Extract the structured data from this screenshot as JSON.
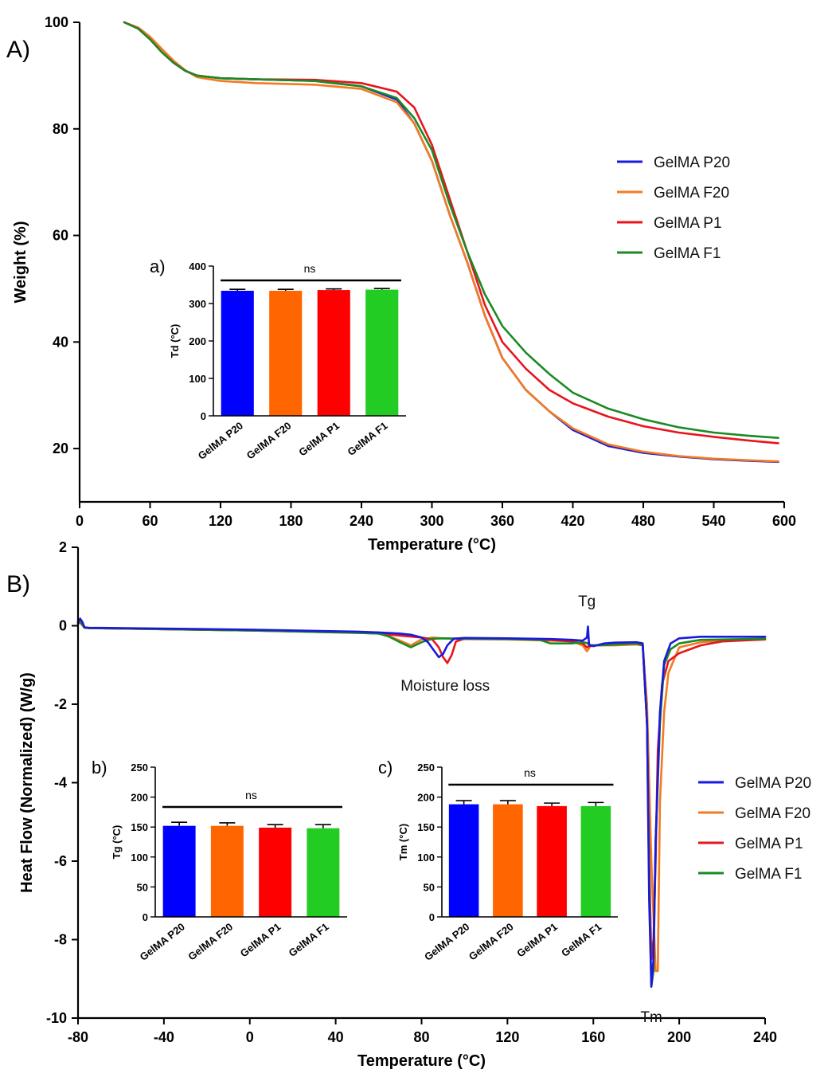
{
  "colors": {
    "GelMA P20": "#1a1adb",
    "GelMA F20": "#f47a20",
    "GelMA P1": "#e8141d",
    "GelMA F1": "#1b8a23"
  },
  "bar_colors": [
    "#0000ff",
    "#ff6600",
    "#ff0000",
    "#22cc22"
  ],
  "chart_data": [
    {
      "id": "A",
      "panel_label": "A)",
      "type": "line",
      "xlabel": "Temperature (°C)",
      "ylabel": "Weight (%)",
      "xlim": [
        0,
        600
      ],
      "ylim": [
        10,
        100
      ],
      "xticks": [
        0,
        60,
        120,
        180,
        240,
        300,
        360,
        420,
        480,
        540,
        600
      ],
      "yticks": [
        20,
        40,
        60,
        80,
        100
      ],
      "legend": [
        "GelMA P20",
        "GelMA F20",
        "GelMA P1",
        "GelMA F1"
      ],
      "series": [
        {
          "name": "GelMA P20",
          "x": [
            38,
            50,
            60,
            70,
            80,
            90,
            100,
            120,
            150,
            200,
            240,
            270,
            285,
            300,
            315,
            330,
            345,
            360,
            380,
            400,
            420,
            450,
            480,
            510,
            540,
            570,
            595
          ],
          "y": [
            100,
            98.8,
            96.8,
            94.4,
            92.4,
            90.9,
            90.0,
            89.5,
            89.3,
            89.0,
            88.0,
            85.5,
            81,
            74,
            64,
            55,
            45,
            37,
            31,
            27,
            23.5,
            20.5,
            19.2,
            18.5,
            18.0,
            17.7,
            17.5
          ]
        },
        {
          "name": "GelMA F20",
          "x": [
            38,
            50,
            60,
            70,
            80,
            90,
            100,
            120,
            150,
            200,
            240,
            270,
            285,
            300,
            315,
            330,
            345,
            360,
            380,
            400,
            420,
            450,
            480,
            510,
            540,
            570,
            595
          ],
          "y": [
            100,
            99,
            97.3,
            95,
            92.8,
            91,
            89.7,
            89.0,
            88.6,
            88.3,
            87.5,
            85.0,
            81,
            74,
            64,
            55,
            45,
            37,
            31,
            27,
            23.8,
            20.8,
            19.4,
            18.6,
            18.1,
            17.8,
            17.6
          ]
        },
        {
          "name": "GelMA P1",
          "x": [
            38,
            50,
            60,
            70,
            80,
            90,
            100,
            120,
            150,
            200,
            240,
            270,
            285,
            300,
            315,
            330,
            345,
            360,
            380,
            400,
            420,
            450,
            480,
            510,
            540,
            570,
            595
          ],
          "y": [
            100,
            98.8,
            96.8,
            94.4,
            92.4,
            90.9,
            90.0,
            89.5,
            89.3,
            89.2,
            88.6,
            87.0,
            84,
            77,
            67,
            57,
            47,
            40,
            35,
            31,
            28.5,
            26,
            24.2,
            23,
            22.2,
            21.5,
            21.0
          ]
        },
        {
          "name": "GelMA F1",
          "x": [
            38,
            50,
            60,
            70,
            80,
            90,
            100,
            120,
            150,
            200,
            240,
            270,
            285,
            300,
            315,
            330,
            345,
            360,
            380,
            400,
            420,
            450,
            480,
            510,
            540,
            570,
            595
          ],
          "y": [
            100,
            98.8,
            96.8,
            94.4,
            92.4,
            90.9,
            90.0,
            89.5,
            89.3,
            89.0,
            88.0,
            85.8,
            82,
            76,
            66,
            57,
            49,
            43,
            38,
            34,
            30.5,
            27.5,
            25.5,
            24.0,
            23.0,
            22.4,
            22.0
          ]
        }
      ]
    },
    {
      "id": "a",
      "panel_label": "a)",
      "type": "bar",
      "categories": [
        "GelMA P20",
        "GelMA F20",
        "GelMA P1",
        "GelMA F1"
      ],
      "values": [
        334,
        334,
        336,
        337
      ],
      "errors": [
        4,
        4,
        3,
        3
      ],
      "ylabel": "Td (°C)",
      "ylim": [
        0,
        400
      ],
      "yticks": [
        0,
        100,
        200,
        300,
        400
      ],
      "significance": "ns"
    },
    {
      "id": "B",
      "panel_label": "B)",
      "type": "line",
      "xlabel": "Temperature (°C)",
      "ylabel": "Heat Flow (Normalized) (W/g)",
      "xlim": [
        -80,
        240
      ],
      "ylim": [
        -10,
        2
      ],
      "xticks": [
        -80,
        -40,
        0,
        40,
        80,
        120,
        160,
        200,
        240
      ],
      "yticks": [
        -10,
        -8,
        -6,
        -4,
        -2,
        0,
        2
      ],
      "legend": [
        "GelMA P20",
        "GelMA F20",
        "GelMA P1",
        "GelMA F1"
      ],
      "annotations": [
        {
          "text": "Tg",
          "x": 157,
          "y": 0.5
        },
        {
          "text": "Moisture loss",
          "x": 91,
          "y": -1.65
        },
        {
          "text": "Tm",
          "x": 187,
          "y": -10.1
        }
      ],
      "series": [
        {
          "name": "GelMA F20",
          "x": [
            -80,
            -79,
            -77,
            -75,
            0,
            50,
            60,
            65,
            70,
            75,
            80,
            85,
            90,
            100,
            120,
            140,
            150,
            155,
            157,
            159,
            162,
            170,
            180,
            183,
            185,
            187,
            189,
            190,
            191,
            193,
            195,
            200,
            210,
            220,
            240
          ],
          "y": [
            0.05,
            0.08,
            -0.05,
            -0.06,
            -0.12,
            -0.18,
            -0.2,
            -0.27,
            -0.38,
            -0.5,
            -0.35,
            -0.3,
            -0.32,
            -0.34,
            -0.35,
            -0.38,
            -0.4,
            -0.5,
            -0.65,
            -0.5,
            -0.5,
            -0.5,
            -0.48,
            -0.5,
            -2.0,
            -6.0,
            -8.8,
            -8.8,
            -4.5,
            -2.2,
            -1.2,
            -0.55,
            -0.42,
            -0.38,
            -0.35
          ]
        },
        {
          "name": "GelMA P1",
          "x": [
            -80,
            -79,
            -77,
            -75,
            0,
            50,
            60,
            70,
            80,
            85,
            88,
            90,
            92,
            94,
            96,
            100,
            120,
            140,
            150,
            155,
            157,
            159,
            162,
            170,
            180,
            183,
            185,
            186,
            187,
            188,
            189,
            190,
            192,
            195,
            200,
            210,
            220,
            240
          ],
          "y": [
            0.05,
            0.1,
            -0.05,
            -0.06,
            -0.12,
            -0.17,
            -0.2,
            -0.25,
            -0.3,
            -0.35,
            -0.55,
            -0.8,
            -0.95,
            -0.75,
            -0.4,
            -0.33,
            -0.34,
            -0.36,
            -0.4,
            -0.45,
            -0.55,
            -0.5,
            -0.5,
            -0.48,
            -0.45,
            -0.5,
            -2.5,
            -6,
            -8.5,
            -8.0,
            -6.0,
            -3.2,
            -1.5,
            -0.9,
            -0.7,
            -0.5,
            -0.4,
            -0.35
          ]
        },
        {
          "name": "GelMA F1",
          "x": [
            -80,
            -79,
            -77,
            -75,
            0,
            50,
            60,
            65,
            70,
            75,
            80,
            85,
            90,
            100,
            120,
            135,
            140,
            150,
            155,
            157,
            159,
            162,
            170,
            180,
            183,
            185,
            186,
            187,
            188,
            189,
            191,
            193,
            196,
            200,
            210,
            240
          ],
          "y": [
            0.08,
            0.12,
            -0.05,
            -0.06,
            -0.12,
            -0.18,
            -0.2,
            -0.28,
            -0.42,
            -0.55,
            -0.42,
            -0.33,
            -0.32,
            -0.33,
            -0.34,
            -0.36,
            -0.45,
            -0.45,
            -0.42,
            -0.44,
            -0.5,
            -0.5,
            -0.48,
            -0.45,
            -0.5,
            -2.5,
            -6.5,
            -9.2,
            -8.8,
            -5.5,
            -2.5,
            -1.0,
            -0.6,
            -0.45,
            -0.36,
            -0.33
          ]
        },
        {
          "name": "GelMA P20",
          "x": [
            -80,
            -79,
            -78,
            -77,
            -75,
            0,
            50,
            60,
            70,
            75,
            80,
            83,
            86,
            88,
            90,
            92,
            95,
            100,
            120,
            140,
            150,
            155,
            157,
            157.5,
            158,
            160,
            165,
            170,
            180,
            183,
            185,
            186,
            187,
            188,
            189,
            191,
            193,
            196,
            200,
            210,
            240
          ],
          "y": [
            0.1,
            0.18,
            0.1,
            -0.04,
            -0.05,
            -0.1,
            -0.15,
            -0.17,
            -0.2,
            -0.23,
            -0.3,
            -0.42,
            -0.65,
            -0.8,
            -0.72,
            -0.5,
            -0.33,
            -0.31,
            -0.32,
            -0.34,
            -0.36,
            -0.38,
            -0.3,
            -0.02,
            -0.5,
            -0.52,
            -0.45,
            -0.43,
            -0.42,
            -0.45,
            -2.5,
            -7,
            -9.2,
            -8.5,
            -5.5,
            -2.2,
            -0.9,
            -0.45,
            -0.32,
            -0.28,
            -0.28
          ]
        }
      ]
    },
    {
      "id": "b",
      "panel_label": "b)",
      "type": "bar",
      "categories": [
        "GelMA P20",
        "GelMA F20",
        "GelMA P1",
        "GelMA F1"
      ],
      "values": [
        152,
        152,
        149,
        148
      ],
      "errors": [
        6,
        5,
        5,
        6
      ],
      "ylabel": "Tg (°C)",
      "ylim": [
        0,
        250
      ],
      "yticks": [
        0,
        50,
        100,
        150,
        200,
        250
      ],
      "significance": "ns"
    },
    {
      "id": "c",
      "panel_label": "c)",
      "type": "bar",
      "categories": [
        "GelMA P20",
        "GelMA F20",
        "GelMA P1",
        "GelMA F1"
      ],
      "values": [
        188,
        188,
        185,
        185
      ],
      "errors": [
        6,
        6,
        5,
        6
      ],
      "ylabel": "Tm (°C)",
      "ylim": [
        0,
        250
      ],
      "yticks": [
        0,
        50,
        100,
        150,
        200,
        250
      ],
      "significance": "ns"
    }
  ]
}
